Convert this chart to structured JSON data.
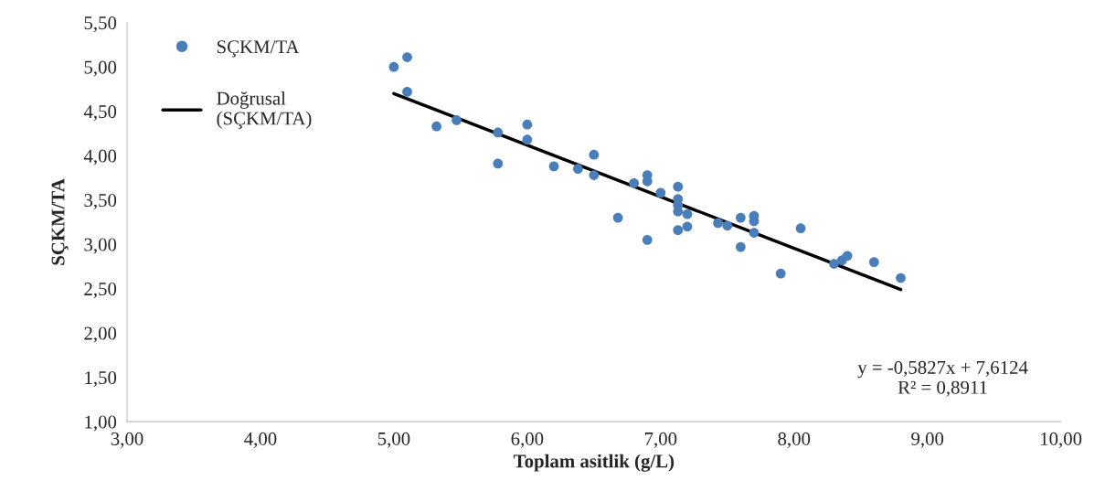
{
  "chart_data": {
    "type": "scatter",
    "xlabel": "Toplam asitlik (g/L)",
    "ylabel": "SÇKM/TA",
    "series": [
      {
        "name": "SÇKM/TA",
        "color": "#4a7ebb",
        "marker": "circle",
        "x": [
          5.0,
          5.1,
          5.1,
          5.32,
          5.47,
          5.78,
          5.78,
          6.0,
          6.0,
          6.2,
          6.38,
          6.5,
          6.5,
          6.68,
          6.8,
          6.9,
          6.9,
          6.9,
          7.0,
          7.13,
          7.13,
          7.13,
          7.13,
          7.13,
          7.2,
          7.2,
          7.43,
          7.5,
          7.6,
          7.6,
          7.7,
          7.7,
          7.7,
          7.9,
          8.05,
          8.3,
          8.36,
          8.4,
          8.6,
          8.8
        ],
        "values": [
          5.0,
          5.11,
          4.72,
          4.33,
          4.4,
          4.26,
          3.91,
          4.35,
          4.18,
          3.88,
          3.85,
          4.01,
          3.78,
          3.3,
          3.69,
          3.78,
          3.71,
          3.05,
          3.58,
          3.65,
          3.51,
          3.44,
          3.37,
          3.16,
          3.34,
          3.2,
          3.24,
          3.21,
          3.3,
          2.97,
          3.32,
          3.26,
          3.13,
          2.67,
          3.18,
          2.78,
          2.82,
          2.87,
          2.8,
          2.62
        ]
      },
      {
        "name": "Doğrusal\n(SÇKM/TA)",
        "type": "line",
        "color": "#000000",
        "marker": "none",
        "line_style": "solid",
        "x": [
          5.0,
          8.8
        ],
        "values": [
          4.7,
          2.49
        ]
      }
    ],
    "xlim": [
      3,
      10
    ],
    "ylim": [
      1,
      5.5
    ],
    "xticks": [
      {
        "value": 3,
        "label": "3,00"
      },
      {
        "value": 4,
        "label": "4,00"
      },
      {
        "value": 5,
        "label": "5,00"
      },
      {
        "value": 6,
        "label": "6,00"
      },
      {
        "value": 7,
        "label": "7,00"
      },
      {
        "value": 8,
        "label": "8,00"
      },
      {
        "value": 9,
        "label": "9,00"
      },
      {
        "value": 10,
        "label": "10,00"
      }
    ],
    "yticks": [
      {
        "value": 1,
        "label": "1,00"
      },
      {
        "value": 1.5,
        "label": "1,50"
      },
      {
        "value": 2,
        "label": "2,00"
      },
      {
        "value": 2.5,
        "label": "2,50"
      },
      {
        "value": 3,
        "label": "3,00"
      },
      {
        "value": 3.5,
        "label": "3,50"
      },
      {
        "value": 4,
        "label": "4,00"
      },
      {
        "value": 4.5,
        "label": "4,50"
      },
      {
        "value": 5,
        "label": "5,00"
      },
      {
        "value": 5.5,
        "label": "5,50"
      }
    ],
    "annotations": [
      "y = -0,5827x + 7,6124\nR² = 0,8911"
    ],
    "legend": "top left",
    "grid": false
  }
}
